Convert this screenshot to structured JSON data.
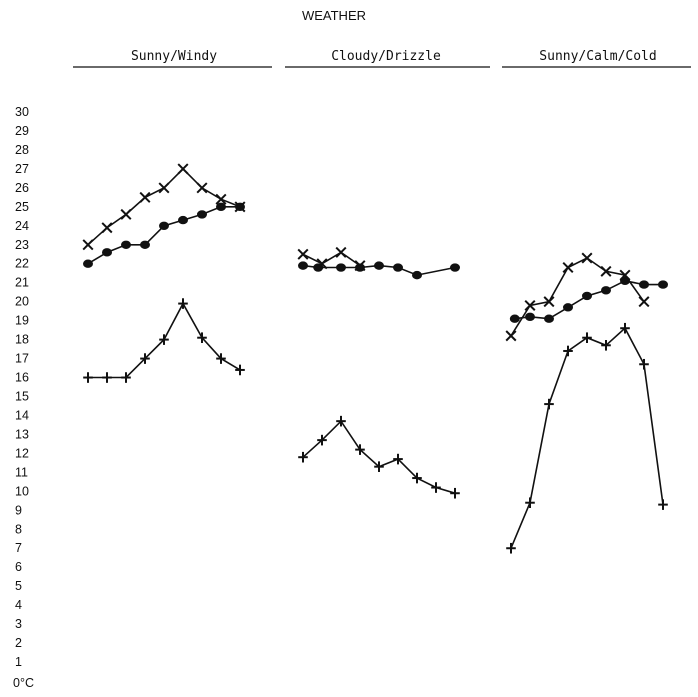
{
  "chart_data": {
    "type": "line",
    "title": "WEATHER",
    "ylabel": "",
    "y_unit_label": "0°C",
    "ylim": [
      0,
      30
    ],
    "yticks": [
      "30",
      "29",
      "28",
      "27",
      "26",
      "25",
      "24",
      "23",
      "22",
      "21",
      "20",
      "19",
      "18",
      "17",
      "16",
      "15",
      "14",
      "13",
      "12",
      "11",
      "10",
      "9",
      "8",
      "7",
      "6",
      "5",
      "4",
      "3",
      "2",
      "1"
    ],
    "grid": false,
    "panels": [
      {
        "label": "Sunny/Windy",
        "series": [
          {
            "marker": "x",
            "values": [
              23.0,
              23.9,
              24.6,
              25.5,
              26.0,
              27.0,
              26.0,
              25.4,
              25.0
            ]
          },
          {
            "marker": "dot",
            "values": [
              22.0,
              22.6,
              23.0,
              23.0,
              24.0,
              24.3,
              24.6,
              25.0,
              25.0
            ]
          },
          {
            "marker": "+",
            "values": [
              16.0,
              16.0,
              16.0,
              17.0,
              18.0,
              19.9,
              18.1,
              17.0,
              16.4
            ]
          }
        ]
      },
      {
        "label": "Cloudy/Drizzle",
        "series": [
          {
            "marker": "x",
            "values": [
              22.5,
              22.0,
              22.6,
              21.9
            ]
          },
          {
            "marker": "dot",
            "values": [
              21.9,
              21.8,
              21.8,
              21.8,
              21.9,
              21.8,
              21.4,
              21.8
            ]
          },
          {
            "marker": "+",
            "values": [
              11.8,
              12.7,
              13.7,
              12.2,
              11.3,
              11.7,
              10.7,
              10.2,
              9.9
            ]
          }
        ]
      },
      {
        "label": "Sunny/Calm/Cold",
        "series": [
          {
            "marker": "x",
            "values": [
              18.2,
              19.8,
              20.0,
              21.8,
              22.3,
              21.6,
              21.4,
              20.0
            ]
          },
          {
            "marker": "dot",
            "values": [
              19.1,
              19.2,
              19.1,
              19.7,
              20.3,
              20.6,
              21.1,
              20.9,
              20.9
            ]
          },
          {
            "marker": "+",
            "values": [
              7.0,
              9.4,
              14.6,
              17.4,
              18.1,
              17.7,
              18.6,
              16.7,
              9.3
            ]
          }
        ]
      }
    ]
  }
}
